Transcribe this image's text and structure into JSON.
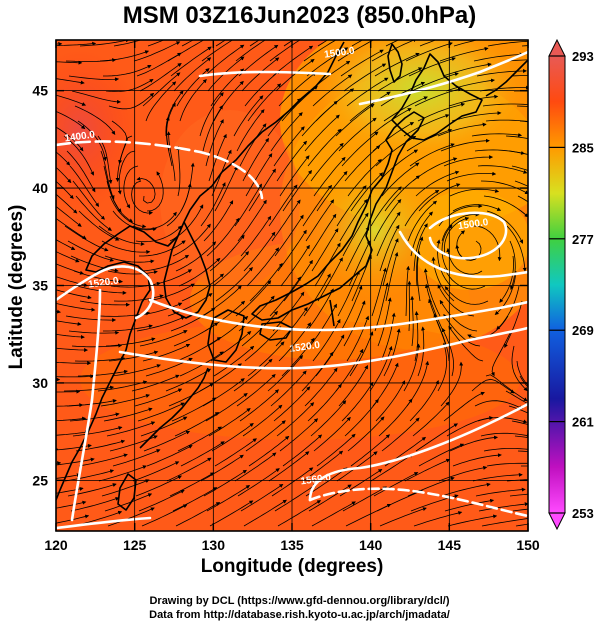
{
  "title": "MSM 03Z16Jun2023 (850.0hPa)",
  "x_axis": {
    "label": "Longitude (degrees)",
    "range": [
      120,
      150
    ],
    "ticks": [
      120,
      125,
      130,
      135,
      140,
      145,
      150
    ]
  },
  "y_axis": {
    "label": "Latitude  (degrees)",
    "range": [
      22.4,
      47.6
    ],
    "ticks": [
      25,
      30,
      35,
      40,
      45
    ]
  },
  "colorbar": {
    "range": [
      253,
      293
    ],
    "ticks": [
      293,
      285,
      277,
      269,
      261,
      253
    ],
    "colors_top_to_bottom": [
      "#e85a55",
      "#ff4a10",
      "#ff9a00",
      "#d8e020",
      "#40d040",
      "#10c8c0",
      "#1060e0",
      "#1818a0",
      "#c010c0",
      "#ff4aff"
    ]
  },
  "contours": [
    {
      "label": "1400.0",
      "lon": 121.5,
      "lat": 42.7
    },
    {
      "label": "1520.0",
      "lon": 123.0,
      "lat": 35.2
    },
    {
      "label": "1520.0",
      "lon": 135.8,
      "lat": 31.9
    },
    {
      "label": "1500.0",
      "lon": 138.0,
      "lat": 47.0
    },
    {
      "label": "1500.0",
      "lon": 146.5,
      "lat": 38.2
    },
    {
      "label": "1560.0",
      "lon": 136.5,
      "lat": 25.1
    }
  ],
  "grid": true,
  "credits": {
    "line1": "Drawing by DCL (https://www.gfd-dennou.org/library/dcl/)",
    "line2": "Data from http://database.rish.kyoto-u.ac.jp/arch/jmadata/"
  }
}
